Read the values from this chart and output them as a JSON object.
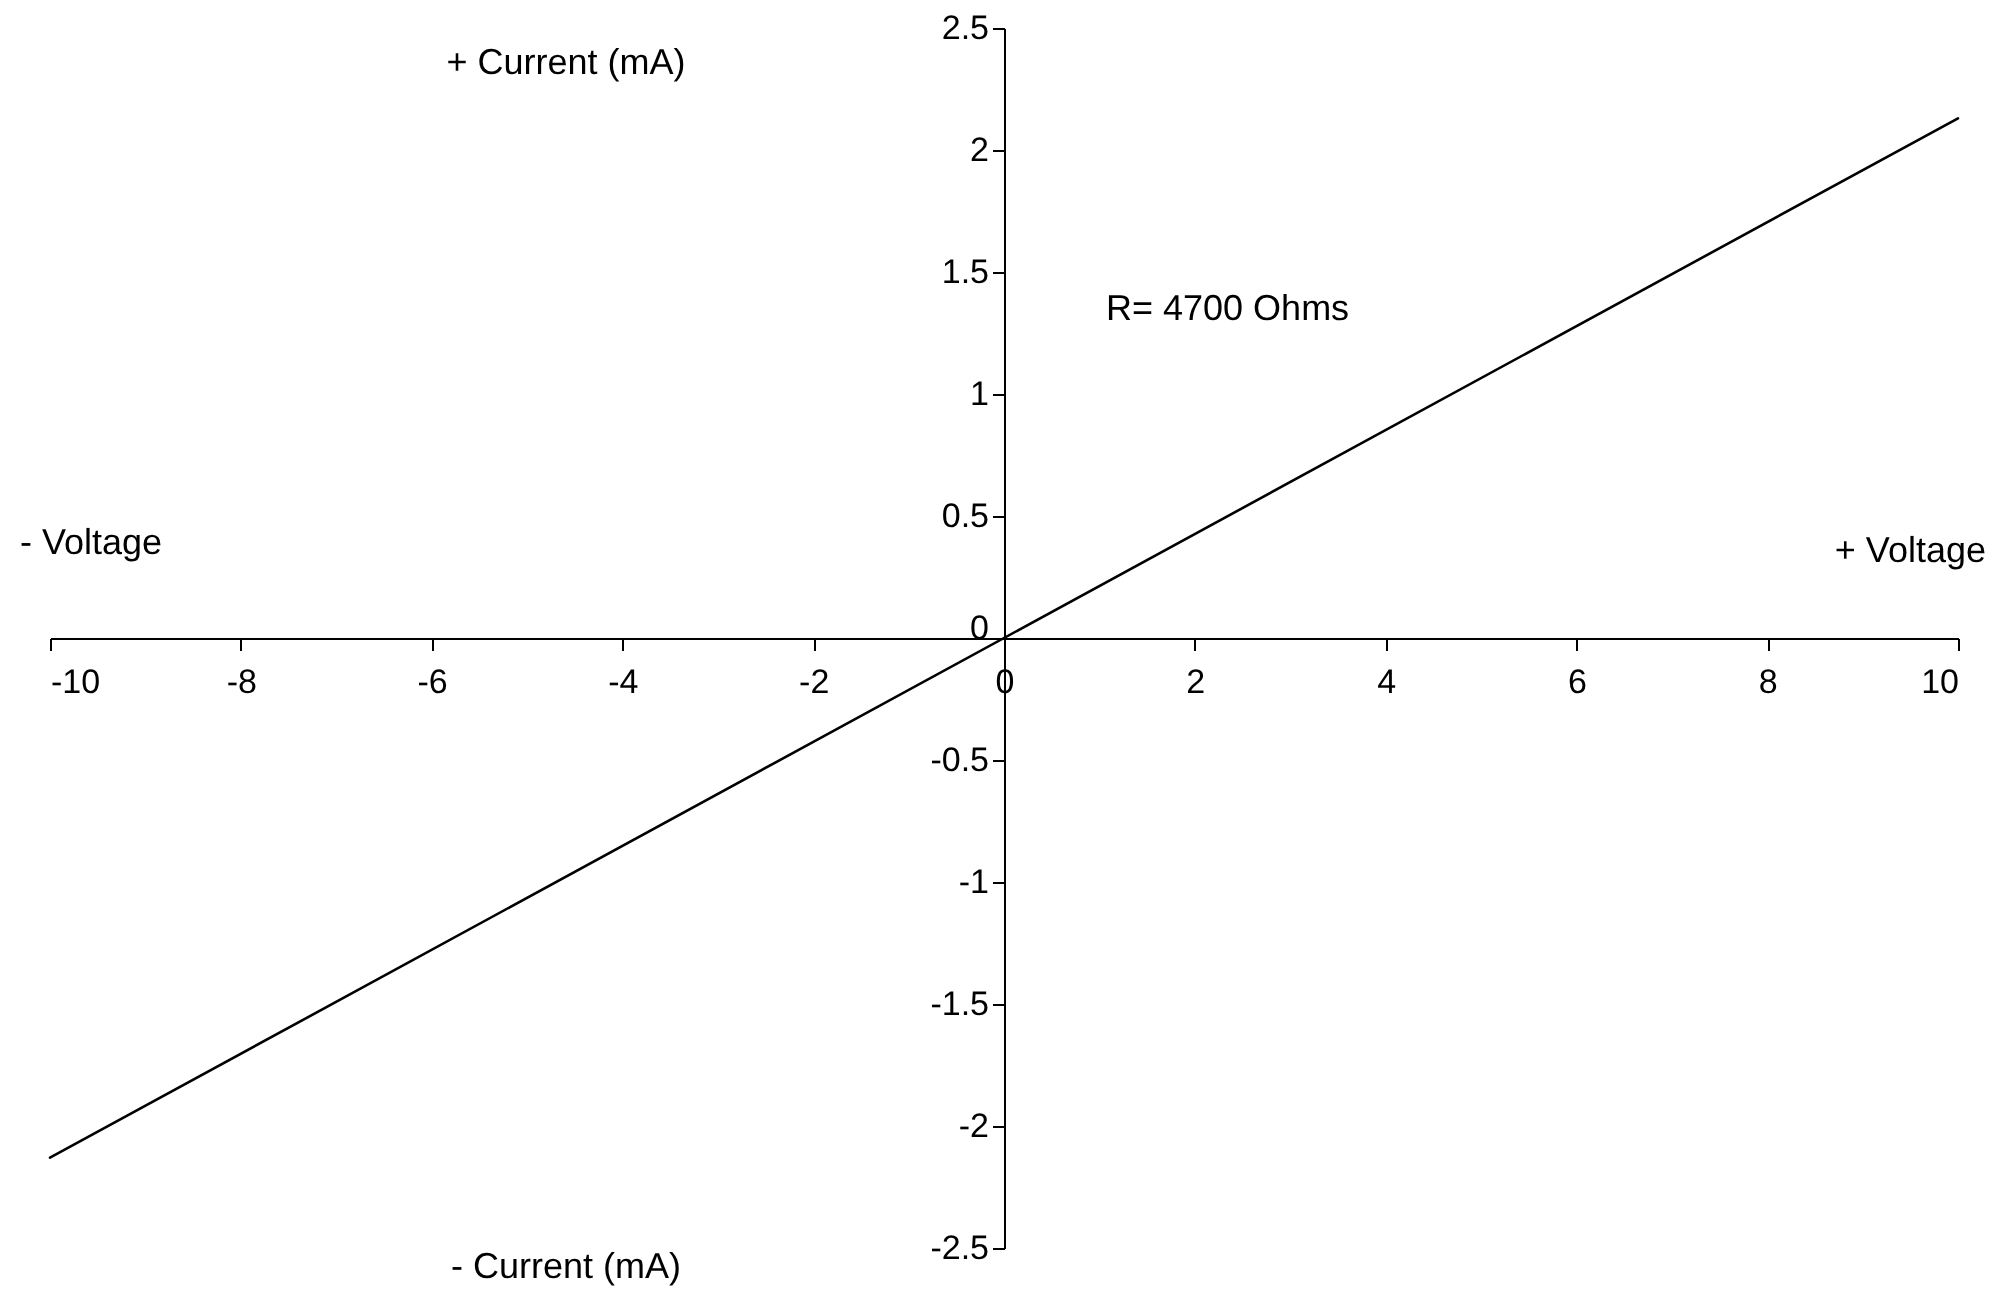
{
  "chart_data": {
    "type": "line",
    "x": [
      -10,
      10
    ],
    "series": [
      {
        "color": "#000000",
        "values": [
          -2.13,
          2.13
        ]
      }
    ],
    "xlim": [
      -10,
      10
    ],
    "xticks": [
      -10,
      -8,
      -6,
      -4,
      -2,
      0,
      2,
      4,
      6,
      8,
      10
    ],
    "ylim": [
      -2.5,
      2.5
    ],
    "yticks": [
      -2.5,
      -2,
      -1.5,
      -1,
      -0.5,
      0,
      0.5,
      1,
      1.5,
      2,
      2.5
    ],
    "annotations": [
      "+ Current (mA)",
      "R= 4700 Ohms",
      "- Voltage",
      "+ Voltage",
      "- Current (mA)"
    ],
    "grid": false,
    "marker": "none",
    "line_style": "solid"
  }
}
